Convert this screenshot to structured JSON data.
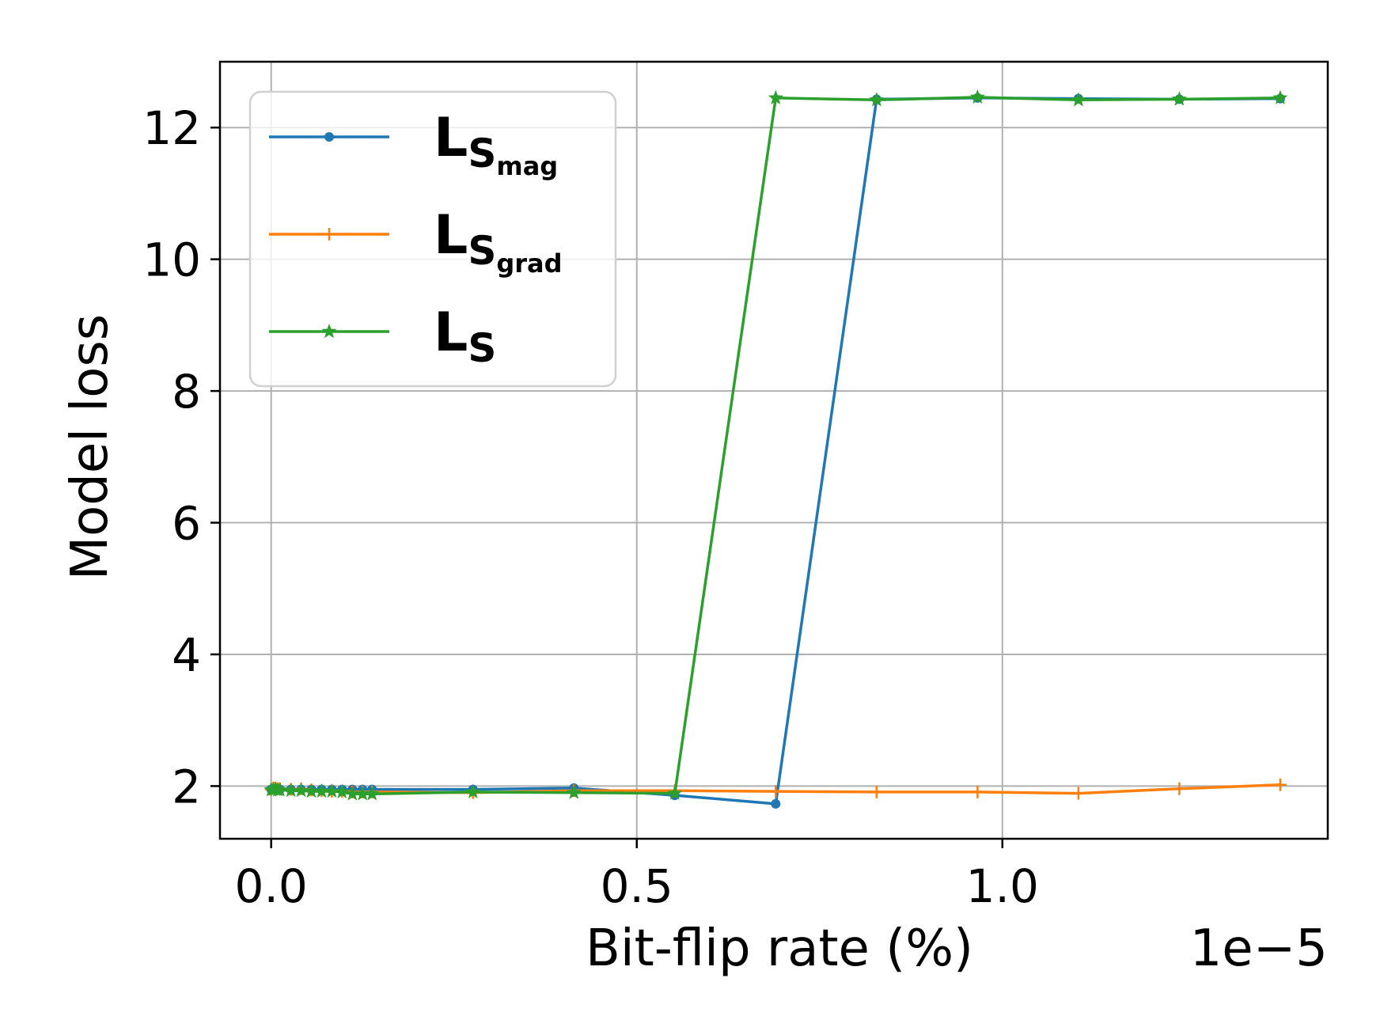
{
  "chart_data": {
    "type": "line",
    "xlabel": "Bit-flip rate (%)",
    "ylabel": "Model loss",
    "x_offset_label": "1e−5",
    "xlim": [
      -0.07,
      1.445
    ],
    "ylim": [
      1.2,
      13.0
    ],
    "grid": true,
    "legend_placement": "upper-left",
    "x_ticks": [
      {
        "value": 0.0,
        "label": "0.0"
      },
      {
        "value": 0.5,
        "label": "0.5"
      },
      {
        "value": 1.0,
        "label": "1.0"
      }
    ],
    "y_ticks": [
      {
        "value": 2,
        "label": "2"
      },
      {
        "value": 4,
        "label": "4"
      },
      {
        "value": 6,
        "label": "6"
      },
      {
        "value": 8,
        "label": "8"
      },
      {
        "value": 10,
        "label": "10"
      },
      {
        "value": 12,
        "label": "12"
      }
    ],
    "series": [
      {
        "name": "L",
        "name_sub": "S",
        "name_subsub": "mag",
        "color": "#1f77b4",
        "marker": "dot",
        "points": [
          [
            0.0,
            1.95
          ],
          [
            0.003,
            1.96
          ],
          [
            0.006,
            1.96
          ],
          [
            0.009,
            1.96
          ],
          [
            0.012,
            1.95
          ],
          [
            0.027,
            1.95
          ],
          [
            0.041,
            1.95
          ],
          [
            0.055,
            1.95
          ],
          [
            0.069,
            1.95
          ],
          [
            0.083,
            1.95
          ],
          [
            0.097,
            1.95
          ],
          [
            0.111,
            1.95
          ],
          [
            0.125,
            1.95
          ],
          [
            0.138,
            1.95
          ],
          [
            0.276,
            1.95
          ],
          [
            0.414,
            1.97
          ],
          [
            0.552,
            1.86
          ],
          [
            0.69,
            1.73
          ],
          [
            0.828,
            12.43
          ],
          [
            0.966,
            12.45
          ],
          [
            1.104,
            12.44
          ],
          [
            1.242,
            12.43
          ],
          [
            1.38,
            12.44
          ]
        ]
      },
      {
        "name": "L",
        "name_sub": "S",
        "name_subsub": "grad",
        "color": "#ff7f0e",
        "marker": "plus",
        "points": [
          [
            0.0,
            1.95
          ],
          [
            0.003,
            1.97
          ],
          [
            0.006,
            1.97
          ],
          [
            0.009,
            1.96
          ],
          [
            0.012,
            1.96
          ],
          [
            0.027,
            1.95
          ],
          [
            0.041,
            1.96
          ],
          [
            0.055,
            1.94
          ],
          [
            0.069,
            1.93
          ],
          [
            0.083,
            1.92
          ],
          [
            0.097,
            1.92
          ],
          [
            0.111,
            1.91
          ],
          [
            0.125,
            1.91
          ],
          [
            0.138,
            1.91
          ],
          [
            0.276,
            1.9
          ],
          [
            0.414,
            1.93
          ],
          [
            0.552,
            1.93
          ],
          [
            0.69,
            1.92
          ],
          [
            0.828,
            1.91
          ],
          [
            0.966,
            1.91
          ],
          [
            1.104,
            1.89
          ],
          [
            1.242,
            1.96
          ],
          [
            1.38,
            2.02
          ]
        ]
      },
      {
        "name": "L",
        "name_sub": "S",
        "name_subsub": "",
        "color": "#2ca02c",
        "marker": "star",
        "points": [
          [
            0.0,
            1.94
          ],
          [
            0.003,
            1.95
          ],
          [
            0.006,
            1.95
          ],
          [
            0.009,
            1.94
          ],
          [
            0.012,
            1.94
          ],
          [
            0.027,
            1.93
          ],
          [
            0.041,
            1.93
          ],
          [
            0.055,
            1.92
          ],
          [
            0.069,
            1.92
          ],
          [
            0.083,
            1.92
          ],
          [
            0.097,
            1.91
          ],
          [
            0.111,
            1.88
          ],
          [
            0.125,
            1.88
          ],
          [
            0.138,
            1.88
          ],
          [
            0.276,
            1.91
          ],
          [
            0.414,
            1.9
          ],
          [
            0.552,
            1.89
          ],
          [
            0.69,
            12.45
          ],
          [
            0.828,
            12.42
          ],
          [
            0.966,
            12.46
          ],
          [
            1.104,
            12.42
          ],
          [
            1.242,
            12.43
          ],
          [
            1.38,
            12.45
          ]
        ]
      }
    ]
  }
}
